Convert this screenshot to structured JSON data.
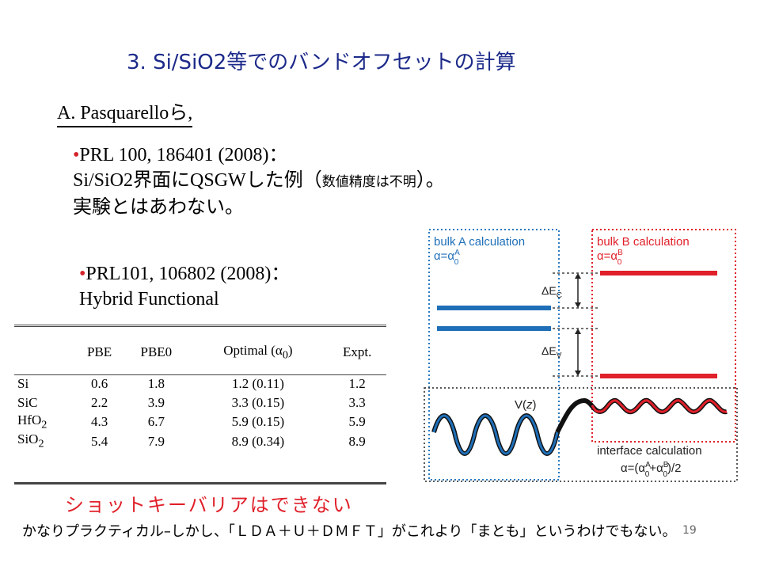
{
  "slide": {
    "title": "3.  Si/SiO2等でのバンドオフセットの計算",
    "author": "A. Pasquarelloら,",
    "bullet1": {
      "line1": "PRL 100, 186401 (2008)：",
      "line2a": "Si/SiO2界面にQSGWした例（",
      "line2b": "数値精度は不明",
      "line2c": "）。",
      "line3": "実験とはあわない。"
    },
    "bullet2": {
      "line1": "PRL101, 106802 (2008)：",
      "line2": "Hybrid Functional"
    },
    "schottky": "ショットキーバリアはできない",
    "footer": "かなりプラクティカル–しかし、「ＬＤＡ＋Ｕ＋ＤＭＦＴ」がこれより「まとも」というわけでもない。",
    "page_number": "19"
  },
  "table": {
    "headers": [
      "",
      "PBE",
      "PBE0",
      "Optimal (α0)",
      "Expt."
    ],
    "rows": [
      [
        "Si",
        "0.6",
        "1.8",
        "1.2 (0.11)",
        "1.2"
      ],
      [
        "SiC",
        "2.2",
        "3.9",
        "3.3 (0.15)",
        "3.3"
      ],
      [
        "HfO2",
        "4.3",
        "6.7",
        "5.9 (0.15)",
        "5.9"
      ],
      [
        "SiO2",
        "5.4",
        "7.9",
        "8.9 (0.34)",
        "8.9"
      ]
    ]
  },
  "diagram": {
    "bulk_a_label": "bulk A calculation",
    "bulk_a_alpha": "α=α0A",
    "bulk_b_label": "bulk B calculation",
    "bulk_b_alpha": "α=α0B",
    "delta_ec": "ΔEC",
    "delta_ev": "ΔEV",
    "potential": "V(z)",
    "interface_label": "interface calculation",
    "interface_alpha": "α=(α0A+α0B)/2",
    "colors": {
      "blue": "#1f6fb8",
      "red": "#e0202a",
      "blue_box": "#2a7ac0",
      "red_box": "#e0202a"
    }
  }
}
